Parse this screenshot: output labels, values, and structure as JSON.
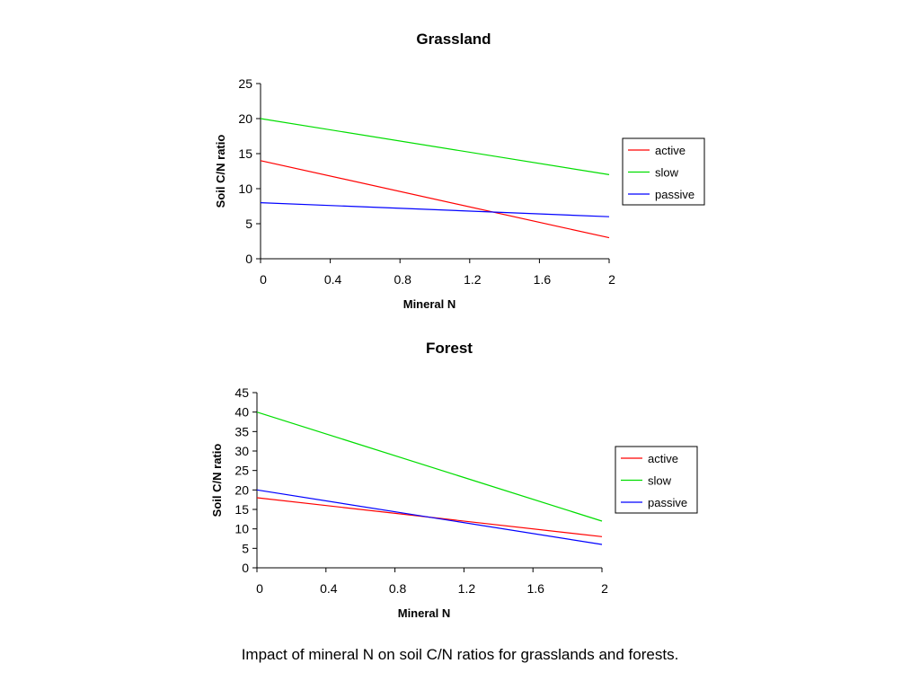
{
  "chart_data": [
    {
      "type": "line",
      "title": "Grassland",
      "xlabel": "Mineral N",
      "ylabel": "Soil C/N ratio",
      "xlim": [
        0,
        2
      ],
      "ylim": [
        0,
        25
      ],
      "xticks": [
        "0",
        "0.4",
        "0.8",
        "1.2",
        "1.6",
        "2"
      ],
      "yticks": [
        "0",
        "5",
        "10",
        "15",
        "20",
        "25"
      ],
      "grid": false,
      "legend_position": "right",
      "series": [
        {
          "name": "active",
          "color": "#ff0000",
          "x": [
            0,
            2
          ],
          "y": [
            14,
            3
          ]
        },
        {
          "name": "slow",
          "color": "#00dd00",
          "x": [
            0,
            2
          ],
          "y": [
            20,
            12
          ]
        },
        {
          "name": "passive",
          "color": "#0000ff",
          "x": [
            0,
            2
          ],
          "y": [
            8,
            6
          ]
        }
      ]
    },
    {
      "type": "line",
      "title": "Forest",
      "xlabel": "Mineral N",
      "ylabel": "Soil C/N ratio",
      "xlim": [
        0,
        2
      ],
      "ylim": [
        0,
        45
      ],
      "xticks": [
        "0",
        "0.4",
        "0.8",
        "1.2",
        "1.6",
        "2"
      ],
      "yticks": [
        "0",
        "5",
        "10",
        "15",
        "20",
        "25",
        "30",
        "35",
        "40",
        "45"
      ],
      "grid": false,
      "legend_position": "right",
      "series": [
        {
          "name": "active",
          "color": "#ff0000",
          "x": [
            0,
            2
          ],
          "y": [
            18,
            8
          ]
        },
        {
          "name": "slow",
          "color": "#00dd00",
          "x": [
            0,
            2
          ],
          "y": [
            40,
            12
          ]
        },
        {
          "name": "passive",
          "color": "#0000ff",
          "x": [
            0,
            2
          ],
          "y": [
            20,
            6
          ]
        }
      ]
    }
  ],
  "caption": "Impact of mineral N on soil C/N ratios for grasslands and forests."
}
